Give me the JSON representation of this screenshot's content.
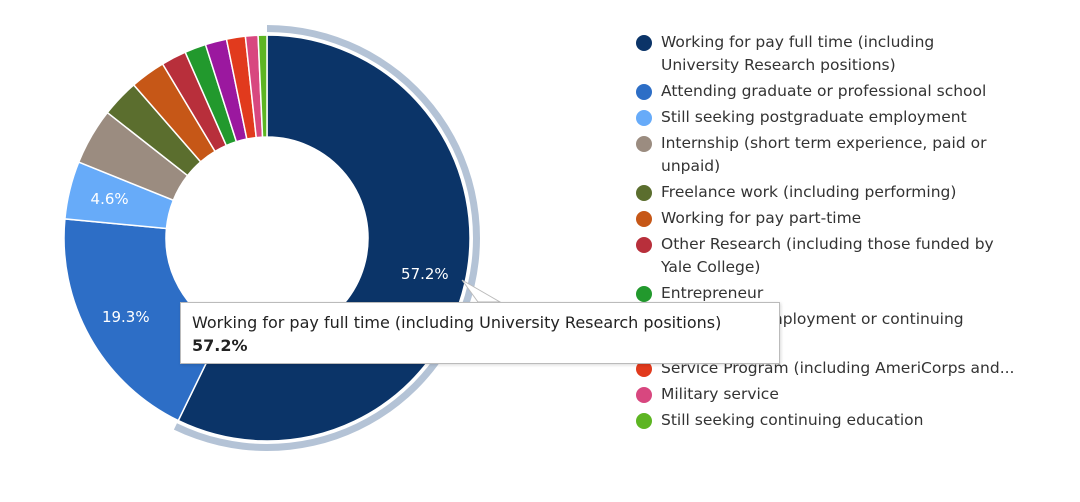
{
  "chart_data": {
    "type": "donut",
    "categories": [
      "Working for pay full time (including University Research positions)",
      "Attending graduate or professional school",
      "Still seeking postgraduate employment",
      "Internship (short term experience, paid or unpaid)",
      "Freelance work (including performing)",
      "Working for pay part-time",
      "Other Research (including those funded by Yale College)",
      "Entrepreneur",
      "Not seeking employment or continuing education",
      "Service Program (including AmeriCorps and...",
      "Military service",
      "Still seeking continuing education"
    ],
    "values": [
      57.2,
      19.3,
      4.6,
      4.5,
      3.0,
      2.8,
      2.0,
      1.7,
      1.7,
      1.5,
      1.0,
      0.7
    ],
    "value_labels": [
      "57.2%",
      "19.3%",
      "4.6%",
      null,
      null,
      null,
      null,
      null,
      null,
      null,
      null,
      null
    ],
    "colors": [
      "#0b3468",
      "#2d6ec6",
      "#67abf9",
      "#9b8c80",
      "#5b6e2e",
      "#c65717",
      "#b82f3b",
      "#22992d",
      "#9b189f",
      "#e13a1d",
      "#d8477f",
      "#5db522"
    ],
    "legend": "right"
  }
}
